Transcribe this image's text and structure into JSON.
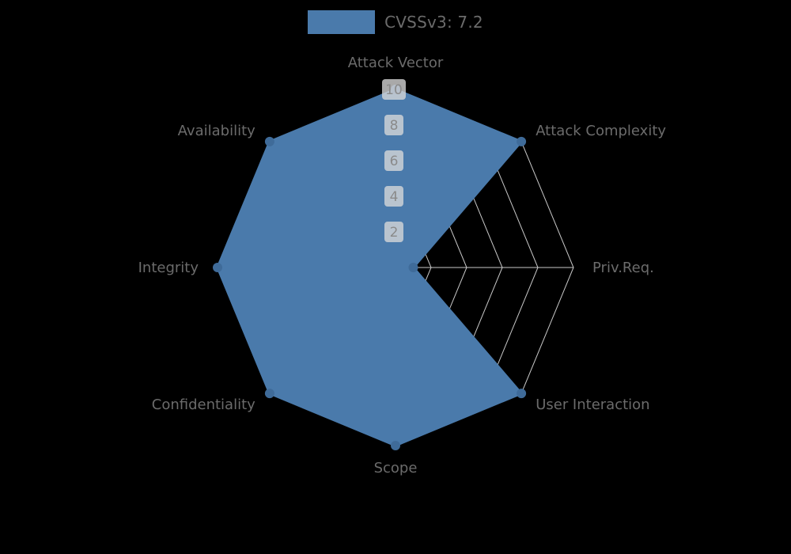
{
  "legend": {
    "label": "CVSSv3: 7.2"
  },
  "chart_data": {
    "type": "radar",
    "title": "CVSSv3: 7.2",
    "categories": [
      "Attack Vector",
      "Attack Complexity",
      "Priv.Req.",
      "User Interaction",
      "Scope",
      "Confidentiality",
      "Integrity",
      "Availability"
    ],
    "series": [
      {
        "name": "CVSSv3: 7.2",
        "values": [
          10,
          10,
          1,
          10,
          10,
          10,
          10,
          10
        ]
      }
    ],
    "ticks": [
      2,
      4,
      6,
      8,
      10
    ],
    "range": [
      0,
      10
    ],
    "grid": true,
    "legend_position": "top-center",
    "colors": {
      "fill": "#4a7aab",
      "stroke": "#4a7aab",
      "dot": "#3f6b99",
      "grid": "#c8c8c8",
      "label": "#6b6b6b",
      "tick_text": "#8a8a8a",
      "tick_bg": "#d9d9d9",
      "background": "#000000"
    }
  }
}
